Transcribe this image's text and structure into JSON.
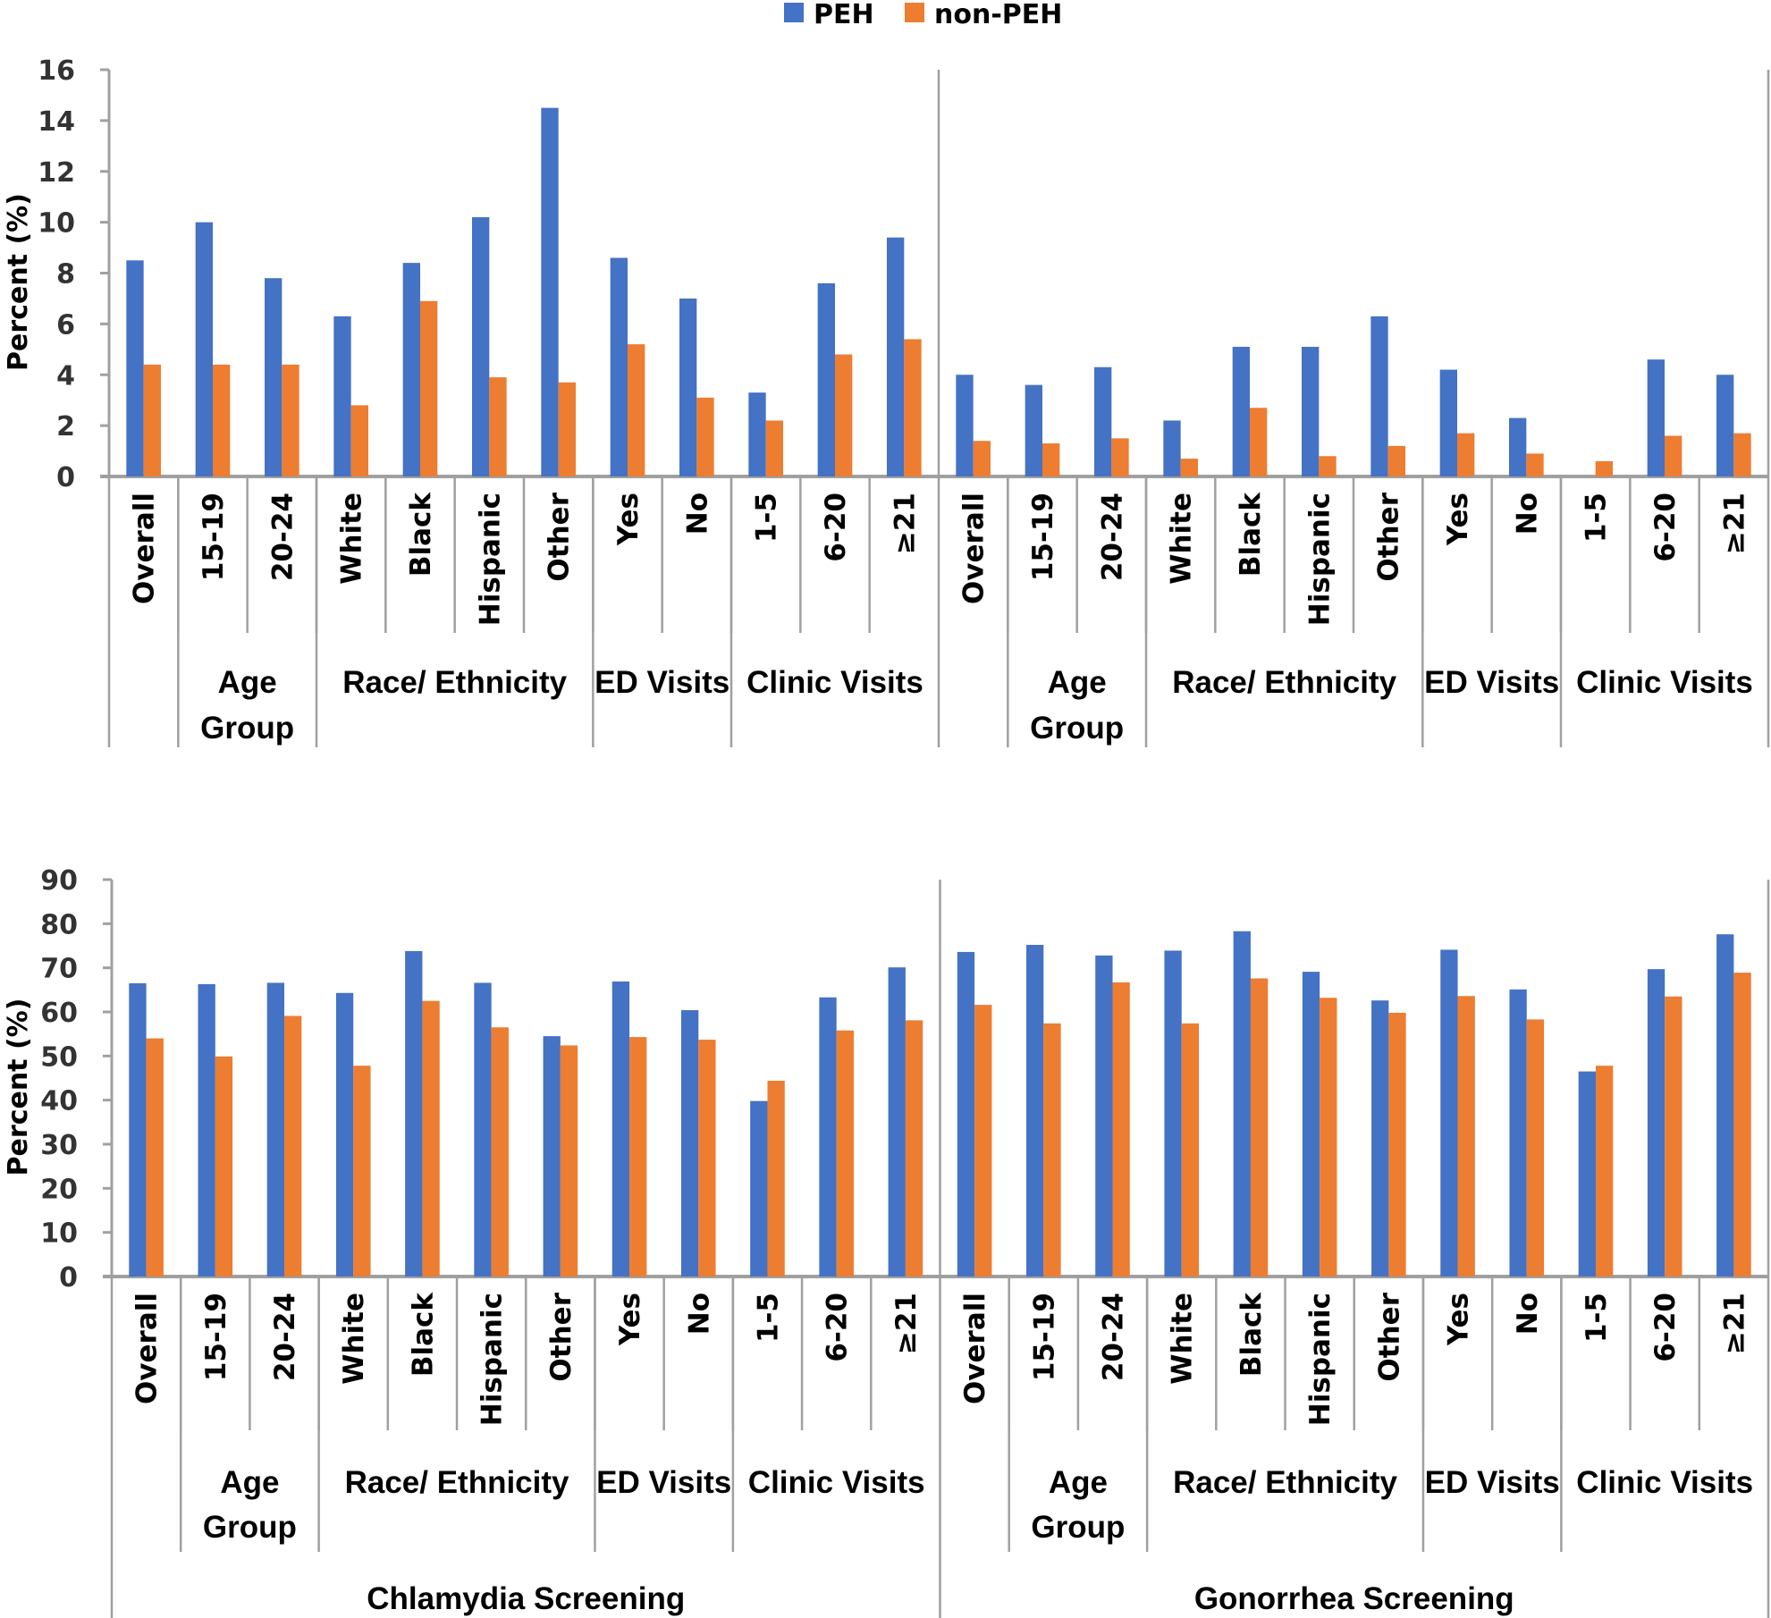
{
  "colors": {
    "peh": "#4472C4",
    "non_peh": "#ED7D31",
    "axis": "#A0A0A0",
    "text": "#000000",
    "tick_text": "#333333"
  },
  "legend": {
    "items": [
      {
        "label": "PEH",
        "series": "peh"
      },
      {
        "label": "non-PEH",
        "series": "non_peh"
      }
    ],
    "position": "top-center"
  },
  "chart_data": [
    {
      "type": "bar",
      "title": "",
      "ylabel": "Percent (%)",
      "xlabel": "",
      "ylim": [
        0,
        16
      ],
      "yticks": [
        0,
        2,
        4,
        6,
        8,
        10,
        12,
        14,
        16
      ],
      "grid": false,
      "panels": [
        {
          "panel_label": "",
          "categories": [
            "Overall",
            "15-19",
            "20-24",
            "White",
            "Black",
            "Hispanic",
            "Other",
            "Yes",
            "No",
            "1-5",
            "6-20",
            "≥21"
          ],
          "groups": [
            {
              "label": [
                "",
                ""
              ],
              "span": [
                0,
                0
              ]
            },
            {
              "label": [
                "Age",
                "Group"
              ],
              "span": [
                1,
                2
              ]
            },
            {
              "label": [
                "Race/   Ethnicity",
                ""
              ],
              "span": [
                3,
                6
              ]
            },
            {
              "label": [
                "ED Visits",
                ""
              ],
              "span": [
                7,
                8
              ]
            },
            {
              "label": [
                "Clinic Visits",
                ""
              ],
              "span": [
                9,
                11
              ]
            }
          ],
          "series": [
            {
              "name": "PEH",
              "values": [
                8.5,
                10.0,
                7.8,
                6.3,
                8.4,
                10.2,
                14.5,
                8.6,
                7.0,
                3.3,
                7.6,
                9.4
              ]
            },
            {
              "name": "non-PEH",
              "values": [
                4.4,
                4.4,
                4.4,
                2.8,
                6.9,
                3.9,
                3.7,
                5.2,
                3.1,
                2.2,
                4.8,
                5.4
              ]
            }
          ]
        },
        {
          "panel_label": "",
          "categories": [
            "Overall",
            "15-19",
            "20-24",
            "White",
            "Black",
            "Hispanic",
            "Other",
            "Yes",
            "No",
            "1-5",
            "6-20",
            "≥21"
          ],
          "groups": [
            {
              "label": [
                "",
                ""
              ],
              "span": [
                0,
                0
              ]
            },
            {
              "label": [
                "Age",
                "Group"
              ],
              "span": [
                1,
                2
              ]
            },
            {
              "label": [
                "Race/   Ethnicity",
                ""
              ],
              "span": [
                3,
                6
              ]
            },
            {
              "label": [
                "ED Visits",
                ""
              ],
              "span": [
                7,
                8
              ]
            },
            {
              "label": [
                "Clinic Visits",
                ""
              ],
              "span": [
                9,
                11
              ]
            }
          ],
          "series": [
            {
              "name": "PEH",
              "values": [
                4.0,
                3.6,
                4.3,
                2.2,
                5.1,
                5.1,
                6.3,
                4.2,
                2.3,
                0,
                4.6,
                4.0
              ]
            },
            {
              "name": "non-PEH",
              "values": [
                1.4,
                1.3,
                1.5,
                0.7,
                2.7,
                0.8,
                1.2,
                1.7,
                0.9,
                0.6,
                1.6,
                1.7
              ]
            }
          ]
        }
      ]
    },
    {
      "type": "bar",
      "title": "",
      "ylabel": "Percent (%)",
      "xlabel": "",
      "ylim": [
        0,
        90
      ],
      "yticks": [
        0,
        10,
        20,
        30,
        40,
        50,
        60,
        70,
        80,
        90
      ],
      "grid": false,
      "panels": [
        {
          "panel_label": "Chlamydia Screening",
          "categories": [
            "Overall",
            "15-19",
            "20-24",
            "White",
            "Black",
            "Hispanic",
            "Other",
            "Yes",
            "No",
            "1-5",
            "6-20",
            "≥21"
          ],
          "groups": [
            {
              "label": [
                "",
                ""
              ],
              "span": [
                0,
                0
              ]
            },
            {
              "label": [
                "Age",
                "Group"
              ],
              "span": [
                1,
                2
              ]
            },
            {
              "label": [
                "Race/   Ethnicity",
                ""
              ],
              "span": [
                3,
                6
              ]
            },
            {
              "label": [
                "ED Visits",
                ""
              ],
              "span": [
                7,
                8
              ]
            },
            {
              "label": [
                "Clinic Visits",
                ""
              ],
              "span": [
                9,
                11
              ]
            }
          ],
          "series": [
            {
              "name": "PEH",
              "values": [
                66.5,
                66.3,
                66.6,
                64.3,
                73.8,
                66.6,
                54.5,
                66.9,
                60.4,
                39.8,
                63.3,
                70.1
              ]
            },
            {
              "name": "non-PEH",
              "values": [
                54.0,
                49.9,
                59.1,
                47.8,
                62.5,
                56.5,
                52.4,
                54.3,
                53.7,
                44.4,
                55.8,
                58.1
              ]
            }
          ]
        },
        {
          "panel_label": "Gonorrhea Screening",
          "categories": [
            "Overall",
            "15-19",
            "20-24",
            "White",
            "Black",
            "Hispanic",
            "Other",
            "Yes",
            "No",
            "1-5",
            "6-20",
            "≥21"
          ],
          "groups": [
            {
              "label": [
                "",
                ""
              ],
              "span": [
                0,
                0
              ]
            },
            {
              "label": [
                "Age",
                "Group"
              ],
              "span": [
                1,
                2
              ]
            },
            {
              "label": [
                "Race/   Ethnicity",
                ""
              ],
              "span": [
                3,
                6
              ]
            },
            {
              "label": [
                "ED Visits",
                ""
              ],
              "span": [
                7,
                8
              ]
            },
            {
              "label": [
                "Clinic Visits",
                ""
              ],
              "span": [
                9,
                11
              ]
            }
          ],
          "series": [
            {
              "name": "PEH",
              "values": [
                73.6,
                75.2,
                72.8,
                73.9,
                78.3,
                69.1,
                62.6,
                74.1,
                65.1,
                46.5,
                69.7,
                77.6
              ]
            },
            {
              "name": "non-PEH",
              "values": [
                61.6,
                57.4,
                66.7,
                57.4,
                67.6,
                63.2,
                59.8,
                63.6,
                58.3,
                47.8,
                63.5,
                68.9
              ]
            }
          ]
        }
      ]
    }
  ]
}
